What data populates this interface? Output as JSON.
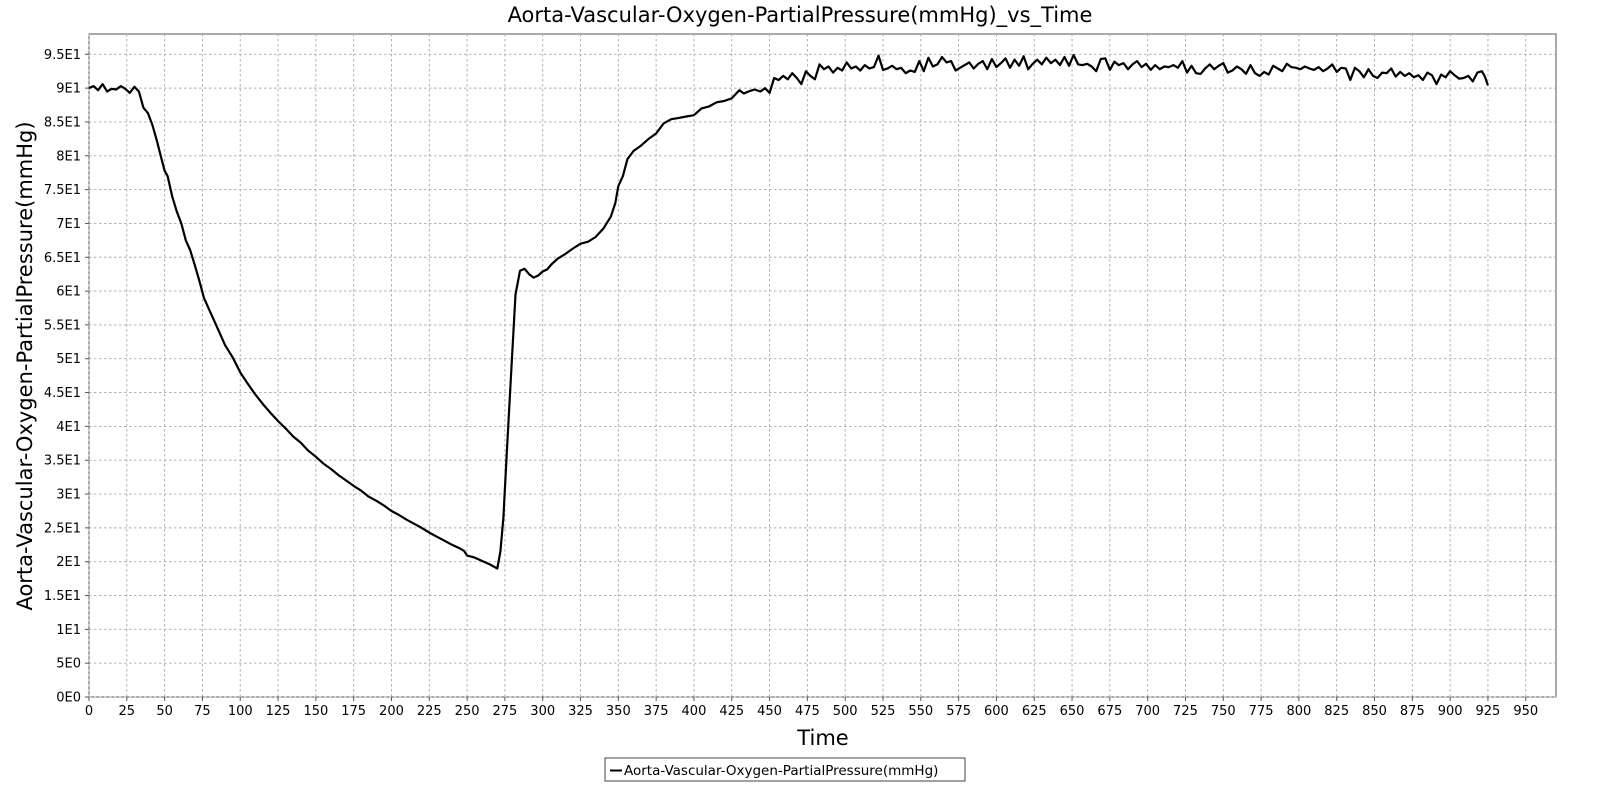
{
  "chart_data": {
    "type": "line",
    "title": "Aorta-Vascular-Oxygen-PartialPressure(mmHg)_vs_Time",
    "xlabel": "Time",
    "ylabel": "Aorta-Vascular-Oxygen-PartialPressure(mmHg)",
    "xlim": [
      0,
      970
    ],
    "ylim": [
      0,
      98
    ],
    "x_ticks": [
      0,
      25,
      50,
      75,
      100,
      125,
      150,
      175,
      200,
      225,
      250,
      275,
      300,
      325,
      350,
      375,
      400,
      425,
      450,
      475,
      500,
      525,
      550,
      575,
      600,
      625,
      650,
      675,
      700,
      725,
      750,
      775,
      800,
      825,
      850,
      875,
      900,
      925,
      950
    ],
    "x_tick_labels": [
      "0",
      "25",
      "50",
      "75",
      "100",
      "125",
      "150",
      "175",
      "200",
      "225",
      "250",
      "275",
      "300",
      "325",
      "350",
      "375",
      "400",
      "425",
      "450",
      "475",
      "500",
      "525",
      "550",
      "575",
      "600",
      "625",
      "650",
      "675",
      "700",
      "725",
      "750",
      "775",
      "800",
      "825",
      "850",
      "875",
      "900",
      "925",
      "950"
    ],
    "y_ticks": [
      0,
      5,
      10,
      15,
      20,
      25,
      30,
      35,
      40,
      45,
      50,
      55,
      60,
      65,
      70,
      75,
      80,
      85,
      90,
      95
    ],
    "y_tick_labels": [
      "0E0",
      "5E0",
      "1E1",
      "1.5E1",
      "2E1",
      "2.5E1",
      "3E1",
      "3.5E1",
      "4E1",
      "4.5E1",
      "5E1",
      "5.5E1",
      "6E1",
      "6.5E1",
      "7E1",
      "7.5E1",
      "8E1",
      "8.5E1",
      "9E1",
      "9.5E1"
    ],
    "grid": true,
    "legend_position": "bottom-center",
    "series": [
      {
        "name": "Aorta-Vascular-Oxygen-PartialPressure(mmHg)",
        "color": "#000000",
        "points": [
          [
            0,
            90.0
          ],
          [
            3,
            90.3
          ],
          [
            6,
            89.7
          ],
          [
            9,
            90.6
          ],
          [
            12,
            89.5
          ],
          [
            15,
            89.9
          ],
          [
            18,
            89.8
          ],
          [
            21,
            90.3
          ],
          [
            24,
            89.9
          ],
          [
            27,
            89.3
          ],
          [
            30,
            90.2
          ],
          [
            33,
            89.5
          ],
          [
            36,
            87.1
          ],
          [
            39,
            86.3
          ],
          [
            42,
            84.5
          ],
          [
            45,
            82.1
          ],
          [
            48,
            79.5
          ],
          [
            50,
            77.8
          ],
          [
            52,
            77.0
          ],
          [
            55,
            74.0
          ],
          [
            58,
            71.8
          ],
          [
            61,
            70.0
          ],
          [
            64,
            67.5
          ],
          [
            67,
            66.0
          ],
          [
            70,
            63.8
          ],
          [
            73,
            61.5
          ],
          [
            76,
            59.0
          ],
          [
            80,
            57.0
          ],
          [
            85,
            54.5
          ],
          [
            90,
            52.0
          ],
          [
            95,
            50.2
          ],
          [
            100,
            48.0
          ],
          [
            105,
            46.3
          ],
          [
            110,
            44.7
          ],
          [
            115,
            43.3
          ],
          [
            120,
            42.0
          ],
          [
            125,
            40.8
          ],
          [
            130,
            39.7
          ],
          [
            135,
            38.5
          ],
          [
            140,
            37.6
          ],
          [
            145,
            36.4
          ],
          [
            150,
            35.5
          ],
          [
            155,
            34.5
          ],
          [
            160,
            33.7
          ],
          [
            165,
            32.8
          ],
          [
            170,
            32.0
          ],
          [
            175,
            31.2
          ],
          [
            180,
            30.5
          ],
          [
            185,
            29.6
          ],
          [
            190,
            29.0
          ],
          [
            195,
            28.3
          ],
          [
            200,
            27.5
          ],
          [
            205,
            26.9
          ],
          [
            210,
            26.2
          ],
          [
            215,
            25.6
          ],
          [
            220,
            25.0
          ],
          [
            225,
            24.3
          ],
          [
            230,
            23.7
          ],
          [
            235,
            23.1
          ],
          [
            240,
            22.5
          ],
          [
            245,
            22.0
          ],
          [
            248,
            21.6
          ],
          [
            250,
            20.9
          ],
          [
            255,
            20.6
          ],
          [
            260,
            20.1
          ],
          [
            265,
            19.6
          ],
          [
            270,
            19.0
          ],
          [
            272,
            21.5
          ],
          [
            274,
            26.5
          ],
          [
            276,
            35.0
          ],
          [
            279,
            47.5
          ],
          [
            282,
            59.5
          ],
          [
            285,
            63.0
          ],
          [
            288,
            63.3
          ],
          [
            291,
            62.5
          ],
          [
            294,
            62.0
          ],
          [
            297,
            62.3
          ],
          [
            300,
            62.9
          ],
          [
            303,
            63.2
          ],
          [
            306,
            64.0
          ],
          [
            310,
            64.8
          ],
          [
            315,
            65.5
          ],
          [
            320,
            66.3
          ],
          [
            325,
            67.0
          ],
          [
            330,
            67.3
          ],
          [
            335,
            68.0
          ],
          [
            340,
            69.2
          ],
          [
            345,
            71.0
          ],
          [
            348,
            73.0
          ],
          [
            350,
            75.5
          ],
          [
            353,
            77.0
          ],
          [
            356,
            79.5
          ],
          [
            360,
            80.7
          ],
          [
            365,
            81.5
          ],
          [
            370,
            82.5
          ],
          [
            375,
            83.3
          ],
          [
            380,
            84.8
          ],
          [
            385,
            85.4
          ],
          [
            390,
            85.6
          ],
          [
            395,
            85.8
          ],
          [
            400,
            86.0
          ],
          [
            405,
            87.0
          ],
          [
            410,
            87.3
          ],
          [
            415,
            87.9
          ],
          [
            420,
            88.1
          ],
          [
            425,
            88.5
          ],
          [
            430,
            89.7
          ],
          [
            433,
            89.2
          ],
          [
            436,
            89.5
          ],
          [
            440,
            89.8
          ],
          [
            444,
            89.5
          ],
          [
            447,
            90.0
          ],
          [
            450,
            89.3
          ],
          [
            453,
            91.5
          ],
          [
            456,
            91.2
          ],
          [
            459,
            91.8
          ],
          [
            462,
            91.3
          ],
          [
            465,
            92.2
          ],
          [
            468,
            91.5
          ],
          [
            471,
            90.6
          ],
          [
            474,
            92.5
          ],
          [
            477,
            91.8
          ],
          [
            480,
            91.3
          ],
          [
            483,
            93.5
          ],
          [
            486,
            92.8
          ],
          [
            489,
            93.2
          ],
          [
            492,
            92.3
          ],
          [
            495,
            93.0
          ],
          [
            498,
            92.6
          ],
          [
            501,
            93.8
          ],
          [
            504,
            92.9
          ],
          [
            507,
            93.2
          ],
          [
            510,
            92.6
          ],
          [
            513,
            93.4
          ],
          [
            516,
            92.9
          ],
          [
            519,
            93.1
          ],
          [
            522,
            94.8
          ],
          [
            525,
            92.7
          ],
          [
            528,
            92.9
          ],
          [
            531,
            93.3
          ],
          [
            534,
            92.8
          ],
          [
            537,
            93.0
          ],
          [
            540,
            92.2
          ],
          [
            543,
            92.6
          ],
          [
            546,
            92.4
          ],
          [
            549,
            94.0
          ],
          [
            552,
            92.5
          ],
          [
            555,
            94.5
          ],
          [
            558,
            93.2
          ],
          [
            561,
            93.5
          ],
          [
            564,
            94.6
          ],
          [
            567,
            93.8
          ],
          [
            570,
            94.0
          ],
          [
            573,
            92.6
          ],
          [
            576,
            93.0
          ],
          [
            579,
            93.4
          ],
          [
            582,
            93.8
          ],
          [
            585,
            92.9
          ],
          [
            588,
            93.6
          ],
          [
            591,
            94.0
          ],
          [
            594,
            92.8
          ],
          [
            597,
            94.3
          ],
          [
            600,
            93.1
          ],
          [
            603,
            93.7
          ],
          [
            606,
            94.4
          ],
          [
            609,
            93.0
          ],
          [
            612,
            94.2
          ],
          [
            615,
            93.3
          ],
          [
            618,
            94.7
          ],
          [
            621,
            92.8
          ],
          [
            624,
            93.6
          ],
          [
            627,
            94.2
          ],
          [
            630,
            93.5
          ],
          [
            633,
            94.5
          ],
          [
            636,
            93.7
          ],
          [
            639,
            94.2
          ],
          [
            642,
            93.4
          ],
          [
            645,
            94.6
          ],
          [
            648,
            93.3
          ],
          [
            651,
            94.9
          ],
          [
            654,
            93.5
          ],
          [
            657,
            93.4
          ],
          [
            660,
            93.6
          ],
          [
            663,
            93.2
          ],
          [
            666,
            92.5
          ],
          [
            669,
            94.3
          ],
          [
            672,
            94.4
          ],
          [
            675,
            92.7
          ],
          [
            678,
            93.9
          ],
          [
            681,
            93.4
          ],
          [
            684,
            93.7
          ],
          [
            687,
            92.8
          ],
          [
            690,
            93.5
          ],
          [
            693,
            94.0
          ],
          [
            696,
            93.1
          ],
          [
            699,
            93.6
          ],
          [
            702,
            92.7
          ],
          [
            705,
            93.4
          ],
          [
            708,
            92.8
          ],
          [
            711,
            93.2
          ],
          [
            714,
            93.1
          ],
          [
            717,
            93.4
          ],
          [
            720,
            93.0
          ],
          [
            723,
            94.0
          ],
          [
            726,
            92.3
          ],
          [
            729,
            93.3
          ],
          [
            732,
            92.2
          ],
          [
            735,
            92.1
          ],
          [
            738,
            92.9
          ],
          [
            741,
            93.5
          ],
          [
            744,
            92.8
          ],
          [
            747,
            93.3
          ],
          [
            750,
            93.7
          ],
          [
            753,
            92.3
          ],
          [
            756,
            92.6
          ],
          [
            759,
            93.2
          ],
          [
            762,
            92.8
          ],
          [
            765,
            92.1
          ],
          [
            768,
            93.4
          ],
          [
            771,
            92.2
          ],
          [
            774,
            91.8
          ],
          [
            777,
            92.4
          ],
          [
            780,
            92.0
          ],
          [
            783,
            93.3
          ],
          [
            786,
            92.9
          ],
          [
            789,
            92.5
          ],
          [
            792,
            93.6
          ],
          [
            795,
            93.1
          ],
          [
            798,
            93.0
          ],
          [
            801,
            92.8
          ],
          [
            804,
            93.2
          ],
          [
            807,
            92.9
          ],
          [
            810,
            92.7
          ],
          [
            813,
            93.1
          ],
          [
            816,
            92.5
          ],
          [
            819,
            92.9
          ],
          [
            822,
            93.5
          ],
          [
            825,
            92.4
          ],
          [
            828,
            93.0
          ],
          [
            831,
            92.9
          ],
          [
            834,
            91.2
          ],
          [
            837,
            93.0
          ],
          [
            840,
            92.5
          ],
          [
            843,
            91.6
          ],
          [
            846,
            92.8
          ],
          [
            849,
            91.8
          ],
          [
            852,
            91.5
          ],
          [
            855,
            92.3
          ],
          [
            858,
            92.2
          ],
          [
            861,
            92.9
          ],
          [
            864,
            91.7
          ],
          [
            867,
            92.4
          ],
          [
            870,
            91.8
          ],
          [
            873,
            92.2
          ],
          [
            876,
            91.6
          ],
          [
            879,
            91.9
          ],
          [
            882,
            91.2
          ],
          [
            885,
            92.3
          ],
          [
            888,
            91.9
          ],
          [
            891,
            90.6
          ],
          [
            894,
            92.0
          ],
          [
            897,
            91.6
          ],
          [
            900,
            92.5
          ],
          [
            903,
            91.9
          ],
          [
            906,
            91.4
          ],
          [
            909,
            91.5
          ],
          [
            912,
            91.8
          ],
          [
            915,
            91.0
          ],
          [
            918,
            92.3
          ],
          [
            921,
            92.5
          ],
          [
            923,
            91.7
          ],
          [
            925,
            90.4
          ]
        ]
      }
    ]
  }
}
